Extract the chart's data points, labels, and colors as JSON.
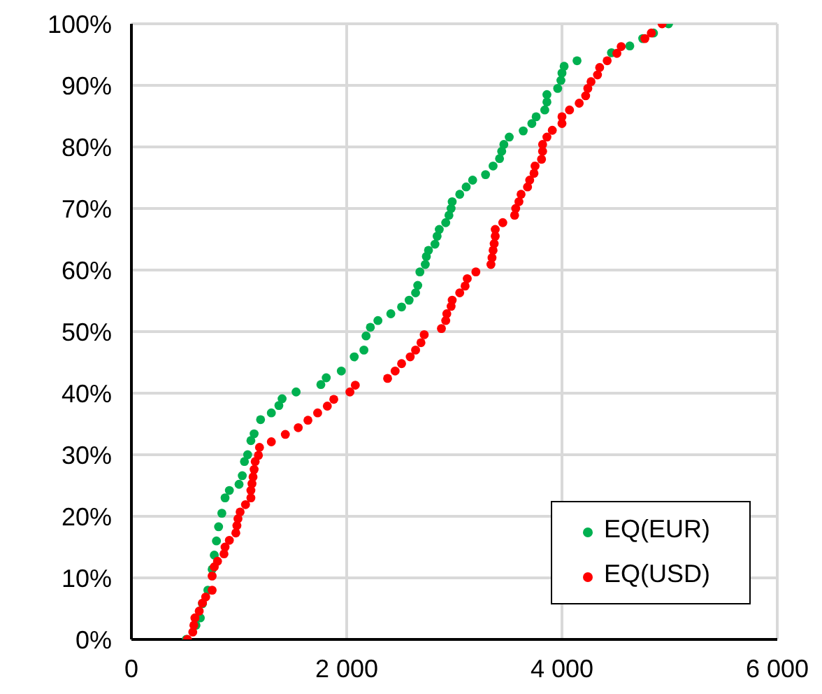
{
  "chart_data": {
    "type": "scatter",
    "xlim": [
      0,
      6000
    ],
    "ylim": [
      0,
      100
    ],
    "xticks": [
      0,
      {
        "value": 2000,
        "label": "2 000"
      },
      {
        "value": 4000,
        "label": "4 000"
      },
      {
        "value": 6000,
        "label": "6 000"
      }
    ],
    "yticks": [
      {
        "value": 0,
        "label": "0%"
      },
      {
        "value": 10,
        "label": "10%"
      },
      {
        "value": 20,
        "label": "20%"
      },
      {
        "value": 30,
        "label": "30%"
      },
      {
        "value": 40,
        "label": "40%"
      },
      {
        "value": 50,
        "label": "50%"
      },
      {
        "value": 60,
        "label": "60%"
      },
      {
        "value": 70,
        "label": "70%"
      },
      {
        "value": 80,
        "label": "80%"
      },
      {
        "value": 90,
        "label": "90%"
      },
      {
        "value": 100,
        "label": "100%"
      }
    ],
    "grid": true,
    "legend": "bottom right",
    "marker": "circle",
    "series": [
      {
        "name": "EQ(EUR)",
        "color": "#00b050",
        "x": [
          510,
          600,
          640,
          660,
          710,
          750,
          770,
          790,
          810,
          840,
          870,
          910,
          1000,
          1030,
          1050,
          1080,
          1110,
          1140,
          1200,
          1300,
          1370,
          1400,
          1530,
          1760,
          1810,
          1950,
          2070,
          2160,
          2180,
          2220,
          2290,
          2410,
          2510,
          2580,
          2640,
          2660,
          2680,
          2730,
          2740,
          2760,
          2820,
          2840,
          2860,
          2920,
          2950,
          2970,
          2980,
          3050,
          3110,
          3170,
          3290,
          3360,
          3420,
          3440,
          3460,
          3510,
          3640,
          3720,
          3760,
          3840,
          3860,
          3860,
          3960,
          3990,
          4000,
          4020,
          4140,
          4460,
          4630,
          4750,
          4850,
          4990
        ],
        "values": [
          0,
          2.3,
          3.5,
          5.8,
          8,
          11.4,
          13.7,
          16,
          18.3,
          20.5,
          23,
          24.2,
          25.2,
          26.6,
          28.9,
          30,
          32.3,
          33.4,
          35.7,
          36.8,
          38,
          39.1,
          40.2,
          41.4,
          42.5,
          43.6,
          45.9,
          47,
          49.3,
          50.7,
          51.8,
          52.9,
          54,
          55.1,
          56.3,
          57.5,
          59.7,
          60.9,
          62.2,
          63.2,
          64.2,
          65.5,
          66.6,
          67.7,
          68.9,
          70,
          71.1,
          72.3,
          73.5,
          74.6,
          75.5,
          76.9,
          78.1,
          79.3,
          80.4,
          81.6,
          82.6,
          83.8,
          84.9,
          86,
          87.3,
          88.5,
          89.5,
          90.8,
          92,
          93.1,
          94,
          95.3,
          96.4,
          97.6,
          98.5,
          100
        ]
      },
      {
        "name": "EQ(USD)",
        "color": "#ff0000",
        "x": [
          520,
          570,
          580,
          590,
          630,
          660,
          690,
          750,
          750,
          770,
          800,
          860,
          870,
          910,
          970,
          980,
          990,
          1010,
          1060,
          1110,
          1110,
          1120,
          1130,
          1140,
          1150,
          1180,
          1190,
          1300,
          1430,
          1550,
          1640,
          1730,
          1820,
          1880,
          2030,
          2080,
          2380,
          2450,
          2510,
          2590,
          2640,
          2690,
          2720,
          2880,
          2920,
          2930,
          2970,
          2980,
          3050,
          3100,
          3120,
          3200,
          3340,
          3350,
          3360,
          3370,
          3380,
          3380,
          3450,
          3560,
          3570,
          3600,
          3620,
          3680,
          3700,
          3740,
          3750,
          3810,
          3820,
          3820,
          3860,
          3910,
          4000,
          4000,
          4070,
          4160,
          4220,
          4240,
          4270,
          4330,
          4350,
          4420,
          4510,
          4550,
          4770,
          4830,
          4930
        ],
        "values": [
          0,
          1.2,
          2.3,
          3.5,
          4.6,
          5.9,
          6.9,
          8,
          10.3,
          11.8,
          12.7,
          13.9,
          15,
          16.1,
          17.3,
          18.5,
          19.6,
          20.7,
          21.9,
          23,
          24.2,
          25.3,
          26.4,
          27.6,
          28.9,
          29.9,
          31.2,
          32.1,
          33.3,
          34.4,
          35.6,
          36.8,
          37.9,
          39,
          40.2,
          41.3,
          42.4,
          43.6,
          44.8,
          45.9,
          47,
          48.2,
          49.5,
          50.5,
          51.8,
          52.9,
          54.1,
          55.1,
          56.3,
          57.4,
          58.6,
          59.7,
          60.9,
          62,
          63.2,
          64.3,
          65.5,
          66.6,
          67.7,
          68.9,
          70,
          71.1,
          72.3,
          73.5,
          74.6,
          75.7,
          76.9,
          78,
          79.3,
          80.4,
          81.6,
          82.7,
          83.8,
          84.9,
          86,
          87.1,
          88.3,
          89.5,
          90.6,
          91.7,
          92.9,
          94,
          95.2,
          96.3,
          97.6,
          98.5,
          100
        ]
      }
    ]
  }
}
